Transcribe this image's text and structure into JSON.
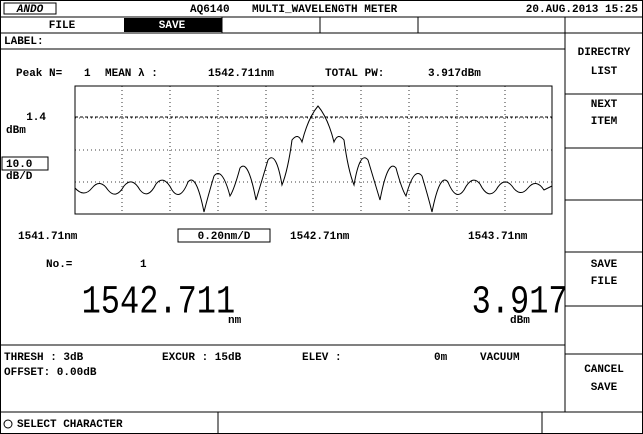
{
  "header": {
    "brand": "ANDO",
    "model": "AQ6140",
    "mode": "MULTI_WAVELENGTH METER",
    "datetime": "20.AUG.2013 15:25"
  },
  "menu": [
    "FILE",
    "SAVE"
  ],
  "label": "LABEL:",
  "summary": {
    "peak_label": "Peak N=",
    "peak_n": "1",
    "mean_label": "MEAN λ :",
    "mean": "1542.711nm",
    "total_label": "TOTAL PW:",
    "total": "3.917dBm"
  },
  "plot": {
    "ref_level": "1.4",
    "ref_unit": "dBm",
    "scale": "10.0",
    "scale_unit": "dB/D",
    "x_start": "1541.71nm",
    "x_span": "0.20nm/D",
    "x_center": "1542.71nm",
    "x_end": "1543.71nm"
  },
  "readout": {
    "no_label": "No.=",
    "no": "1",
    "wavelength": "1542.711",
    "wavelength_unit": "nm",
    "power": "3.917",
    "power_unit": "dBm"
  },
  "status": {
    "thresh": "THRESH  :  3dB",
    "excur": "EXCUR : 15dB",
    "elev": "ELEV  :",
    "elev_value": "0m",
    "medium": "VACUUM",
    "offset": "OFFSET:  0.00dB"
  },
  "softkeys": {
    "directry": [
      "DIRECTRY",
      "LIST"
    ],
    "next": [
      "NEXT",
      "ITEM"
    ],
    "save_file": [
      "SAVE",
      "FILE"
    ],
    "cancel": [
      "CANCEL",
      "SAVE"
    ]
  },
  "footer": "SELECT CHARACTER"
}
